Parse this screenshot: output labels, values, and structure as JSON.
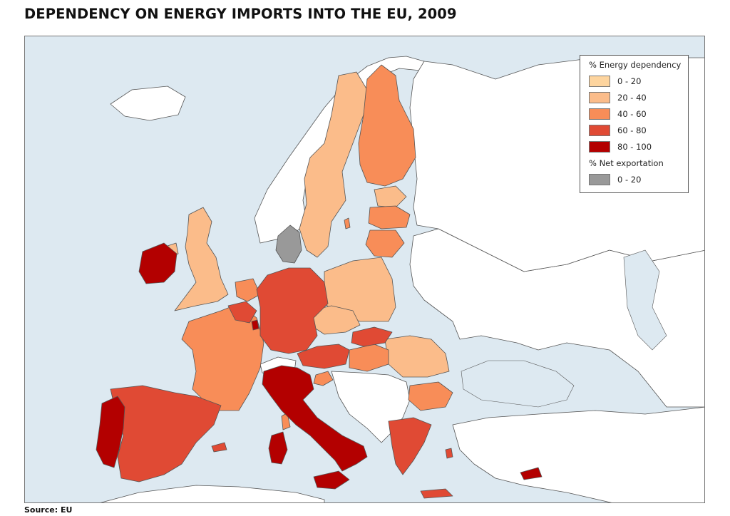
{
  "title": "DEPENDENCY ON ENERGY IMPORTS INTO THE EU, 2009",
  "source": "Source: EU",
  "legend": {
    "dependency_heading": "% Energy dependency",
    "dependency_classes": [
      {
        "label": "0 - 20",
        "color": "#fdd49e"
      },
      {
        "label": "20 - 40",
        "color": "#fbbc8a"
      },
      {
        "label": "40 - 60",
        "color": "#f88d58"
      },
      {
        "label": "60 - 80",
        "color": "#e04a34"
      },
      {
        "label": "80 - 100",
        "color": "#b30000"
      }
    ],
    "export_heading": "% Net exportation",
    "export_classes": [
      {
        "label": "0 - 20",
        "color": "#999999"
      }
    ]
  },
  "colors": {
    "sea": "#dde9f1",
    "non_eu_land": "#ffffff",
    "border": "#555555"
  }
}
